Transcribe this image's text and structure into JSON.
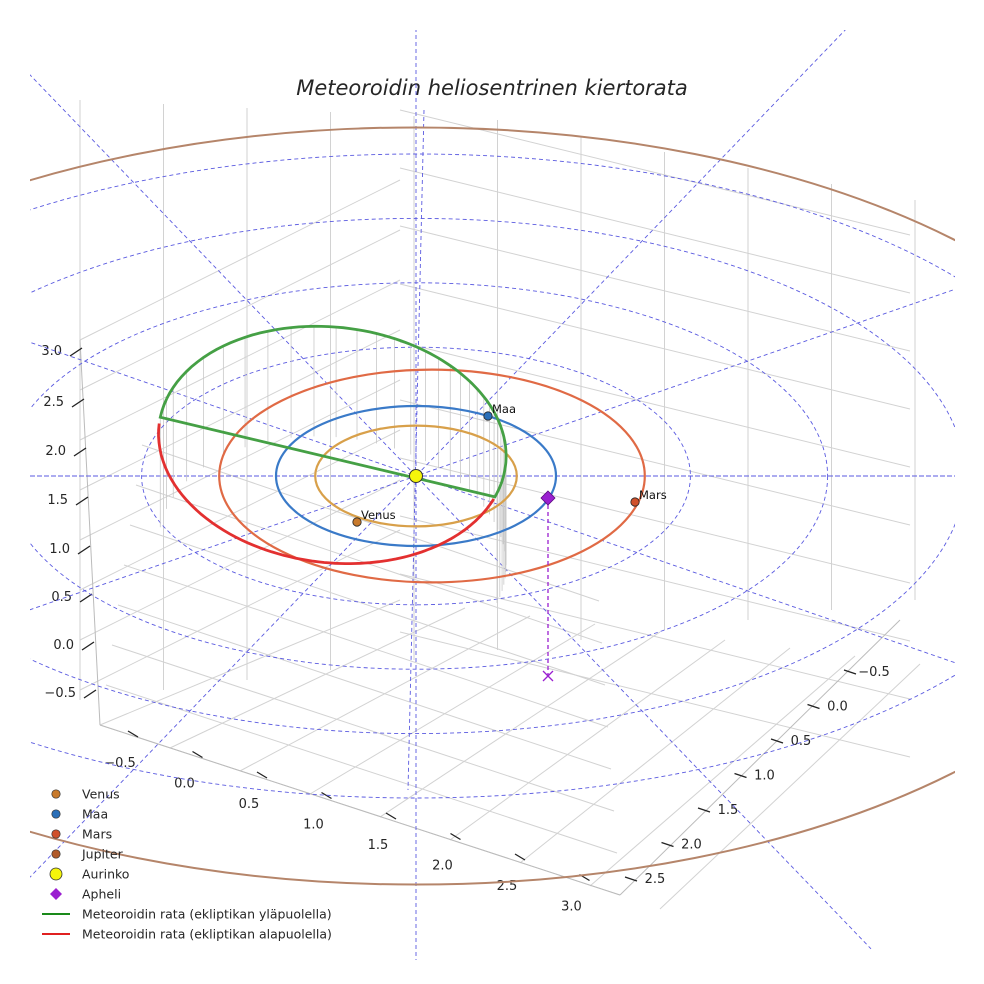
{
  "chart_data": {
    "type": "3d-line",
    "title": "Meteoroidin heliosentrinen kiertorata",
    "axes": {
      "x_ticks": [
        "−0.5",
        "0.0",
        "0.5",
        "1.0",
        "1.5",
        "2.0",
        "2.5",
        "3.0"
      ],
      "y_ticks": [
        "−0.5",
        "0.0",
        "0.5",
        "1.0",
        "1.5",
        "2.0",
        "2.5"
      ],
      "z_ticks": [
        "−0.5",
        "0.0",
        "0.5",
        "1.0",
        "1.5",
        "2.0",
        "2.5",
        "3.0"
      ]
    },
    "grid": true,
    "legend_placement": "lower-left",
    "planet_orbits": [
      {
        "name": "Venus",
        "radius_au": 0.72,
        "color": "#d8a04a"
      },
      {
        "name": "Maa",
        "radius_au": 1.0,
        "color": "#3a7ac8"
      },
      {
        "name": "Mars",
        "radius_au": 1.52,
        "color": "#e06a45"
      },
      {
        "name": "Jupiter",
        "radius_au": 5.2,
        "color": "#b5856a"
      }
    ],
    "points": [
      {
        "name": "Venus",
        "label": "Venus",
        "color": "#c87a2c"
      },
      {
        "name": "Maa",
        "label": "Maa",
        "color": "#2a6fb8"
      },
      {
        "name": "Mars",
        "label": "Mars",
        "color": "#d0502a"
      },
      {
        "name": "Aurinko",
        "label": "",
        "color": "#f5f50a"
      },
      {
        "name": "Apheli",
        "label": "",
        "color": "#9a1fd0"
      }
    ],
    "series": [
      {
        "name": "Meteoroidin rata (ekliptikan yläpuolella)",
        "color": "#45a045"
      },
      {
        "name": "Meteoroidin rata (ekliptikan alapuolella)",
        "color": "#e33030"
      }
    ],
    "legend": [
      {
        "label": "Venus",
        "marker": "circle",
        "color": "#c87a2c"
      },
      {
        "label": "Maa",
        "marker": "circle",
        "color": "#2a6fb8"
      },
      {
        "label": "Mars",
        "marker": "circle",
        "color": "#d0502a"
      },
      {
        "label": "Jupiter",
        "marker": "circle",
        "color": "#b05a2a"
      },
      {
        "label": "Aurinko",
        "marker": "circle-large",
        "color": "#f5f50a"
      },
      {
        "label": "Apheli",
        "marker": "diamond",
        "color": "#9a1fd0"
      },
      {
        "label": "Meteoroidin rata (ekliptikan yläpuolella)",
        "marker": "line",
        "color": "#1a8a1a"
      },
      {
        "label": "Meteoroidin rata (ekliptikan alapuolella)",
        "marker": "line",
        "color": "#e02020"
      }
    ]
  }
}
